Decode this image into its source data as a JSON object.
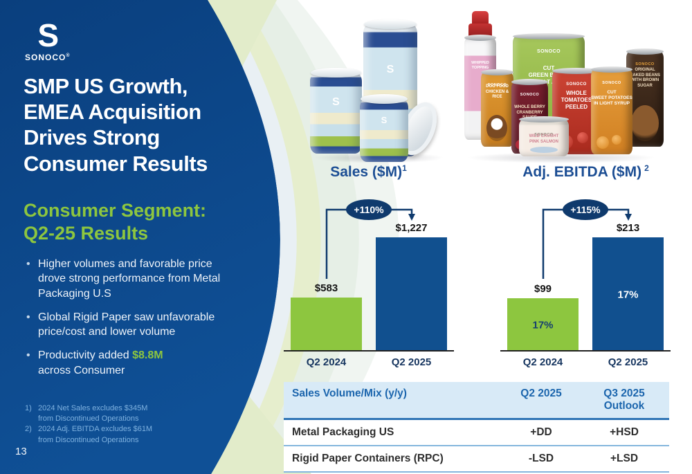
{
  "panel": {
    "brand": "SONOCO",
    "logo_mark": "S",
    "reg_mark": "®",
    "title": "SMP US Growth,\nEMEA Acquisition\nDrives Strong\nConsumer Results",
    "subtitle": "Consumer Segment:\nQ2-25 Results",
    "bullets": [
      {
        "text": "Higher volumes and favorable price drove strong performance from Metal Packaging U.S"
      },
      {
        "text": "Global Rigid Paper saw unfavorable price/cost and lower volume"
      },
      {
        "pre": "Productivity added ",
        "highlight": "$8.8M",
        "post": "\nacross Consumer"
      }
    ],
    "footnotes": [
      {
        "num": "1)",
        "text": "2024 Net Sales excludes $345M\nfrom Discontinued Operations"
      },
      {
        "num": "2)",
        "text": "2024 Adj. EBITDA excludes $61M\nfrom Discontinued Operations"
      }
    ],
    "page_number": "13"
  },
  "chart_data": [
    {
      "type": "bar",
      "title": "Sales ($M)",
      "title_superscript": "1",
      "categories": [
        "Q2 2024",
        "Q2 2025"
      ],
      "values": [
        583,
        1227
      ],
      "value_labels": [
        "$583",
        "$1,227"
      ],
      "change_badge": "+110%",
      "bar_colors": [
        "#8dc63f",
        "#11508f"
      ],
      "ylim": [
        0,
        1300
      ],
      "grid": false,
      "legend": false
    },
    {
      "type": "bar",
      "title": "Adj. EBITDA ($M)",
      "title_superscript": "2",
      "categories": [
        "Q2 2024",
        "Q2 2025"
      ],
      "values": [
        99,
        213
      ],
      "value_labels": [
        "$99",
        "$213"
      ],
      "inner_labels": [
        "17%",
        "17%"
      ],
      "change_badge": "+115%",
      "bar_colors": [
        "#8dc63f",
        "#11508f"
      ],
      "ylim": [
        0,
        230
      ],
      "grid": false,
      "legend": false
    }
  ],
  "table": {
    "header": [
      "Sales Volume/Mix (y/y)",
      "Q2 2025",
      "Q3 2025 Outlook"
    ],
    "rows": [
      [
        "Metal Packaging US",
        "+DD",
        "+HSD"
      ],
      [
        "Rigid Paper Containers (RPC)",
        "-LSD",
        "+LSD"
      ]
    ]
  },
  "products": {
    "rigid_logo": "S",
    "cans": {
      "brand": "SONOCO",
      "whipped": "WHIPPED\nTOPPING",
      "dog_food": "DOG FOOD\nCHICKEN & RICE",
      "cranberry": "WHOLE BERRY\nCRANBERRY\nSAUCE",
      "green_beans": "CUT\nGREEN BEANS\nNO SALT ADDED",
      "tomatoes": "WHOLE\nTOMATOES\nPEELED",
      "sweet_potatoes": "CUT\nSWEET POTATOES\nIN LIGHT SYRUP",
      "baked_beans": "ORIGINAL\nBAKED BEANS\nWITH BROWN SUGAR",
      "salmon": "WILD CAUGHT\nPINK SALMON"
    }
  },
  "colors": {
    "panel_blue": "#0c4689",
    "accent_green": "#8dc63f",
    "bar_blue": "#11508f",
    "badge_navy": "#0f3a6d",
    "table_header_bg": "#d8eaf7",
    "table_header_text": "#1b65ad",
    "footnote_blue": "#7fb2e0"
  }
}
